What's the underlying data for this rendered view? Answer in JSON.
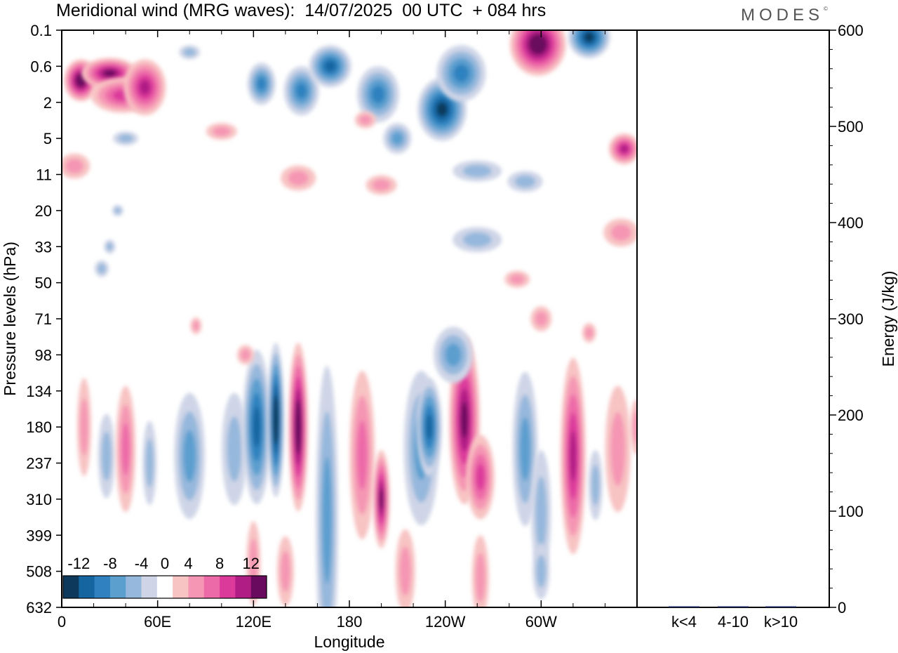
{
  "header": {
    "title": "Meridional wind (MRG waves):  14/07/2025  00 UTC  + 084 hrs",
    "logo": "MODES"
  },
  "chart_data": [
    {
      "type": "heatmap",
      "title": "Meridional wind (MRG waves):  14/07/2025  00 UTC  + 084 hrs",
      "xlabel": "Longitude",
      "ylabel": "Pressure levels (hPa)",
      "x_ticks": [
        "0",
        "60E",
        "120E",
        "180",
        "120W",
        "60W"
      ],
      "x_tick_values": [
        0,
        60,
        120,
        180,
        240,
        300
      ],
      "x_range": [
        0,
        360
      ],
      "y_ticks": [
        "0.1",
        "0.6",
        "2",
        "5",
        "11",
        "20",
        "33",
        "50",
        "71",
        "98",
        "134",
        "180",
        "237",
        "310",
        "399",
        "508",
        "632"
      ],
      "colorbar": {
        "labels": [
          "-12",
          "-8",
          "-4",
          "0",
          "4",
          "8",
          "12"
        ],
        "levels": [
          -14,
          -12,
          -10,
          -8,
          -6,
          -4,
          -2,
          2,
          4,
          6,
          8,
          10,
          12,
          14
        ],
        "colors": [
          "#0d3a5c",
          "#1565a1",
          "#2f82bf",
          "#5b9fcf",
          "#96b8dc",
          "#cfd5e7",
          "#ffffff",
          "#f8c3c3",
          "#f596b4",
          "#ed6aa8",
          "#dc3a9b",
          "#b01e85",
          "#6a0a5e"
        ]
      },
      "features": [
        {
          "lon": 135,
          "level": "180",
          "value": -14
        },
        {
          "lon": 148,
          "level": "180",
          "value": 14
        },
        {
          "lon": 200,
          "level": "310",
          "value": 12
        },
        {
          "lon": 230,
          "level": "180",
          "value": -10
        },
        {
          "lon": 252,
          "level": "180",
          "value": 12
        },
        {
          "lon": 320,
          "level": "237",
          "value": 10
        },
        {
          "lon": 310,
          "level": "0.1",
          "value": 14
        },
        {
          "lon": 10,
          "level": "0.6",
          "value": 14
        }
      ]
    },
    {
      "type": "bar",
      "categories": [
        "k<4",
        "4-10",
        "k>10"
      ],
      "values": [
        0,
        1,
        0
      ],
      "ylabel": "Energy (J/kg)",
      "ylim": [
        0,
        600
      ],
      "y_ticks": [
        "0",
        "100",
        "200",
        "300",
        "400",
        "500",
        "600"
      ],
      "bar_color": "#1e2a6e"
    }
  ]
}
